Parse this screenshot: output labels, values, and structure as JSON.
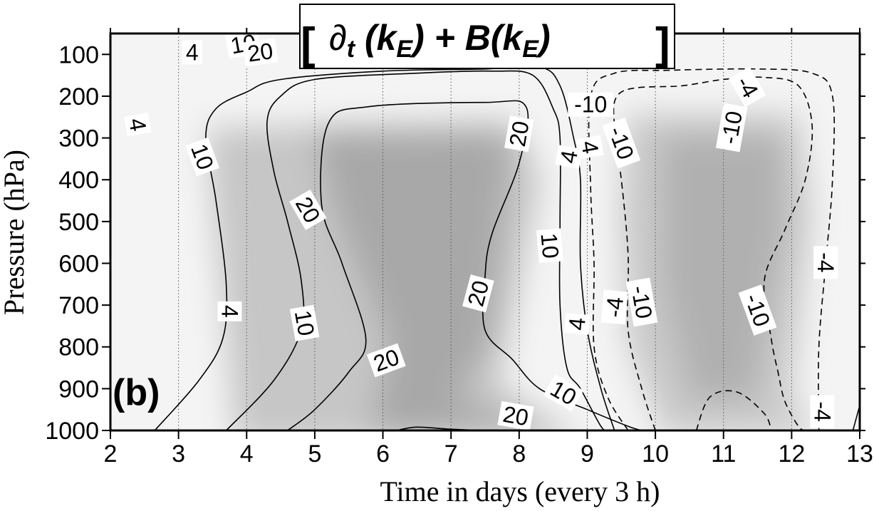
{
  "chart_data": {
    "type": "contour",
    "title": "[ ∂t (kE) + B(kE) ]",
    "title_parts": {
      "open_bracket": "[",
      "partial": "∂",
      "partial_sub": "t",
      "mid1": " (k",
      "sub1": "E",
      "mid2": ") + B(k",
      "sub2": "E",
      "mid3": ")",
      "close_bracket": "]"
    },
    "panel_label": "(b)",
    "xlabel": "Time in days (every 3 h)",
    "ylabel": "Pressure (hPa)",
    "xlim": [
      2,
      13
    ],
    "ylim": [
      1000,
      50
    ],
    "y_inverted": true,
    "grid": "vertical dotted lines every 1 day",
    "x_ticks": [
      2,
      3,
      4,
      5,
      6,
      7,
      8,
      9,
      10,
      11,
      12,
      13
    ],
    "y_ticks": [
      100,
      200,
      300,
      400,
      500,
      600,
      700,
      800,
      900,
      1000
    ],
    "contour_levels": [
      -10,
      -4,
      4,
      10,
      20
    ],
    "negative_style": "dashed",
    "positive_style": "solid",
    "contours": [
      {
        "level": 4,
        "points": [
          [
            2.65,
            1000
          ],
          [
            3.3,
            880
          ],
          [
            3.65,
            780
          ],
          [
            3.7,
            650
          ],
          [
            3.55,
            450
          ],
          [
            3.4,
            300
          ],
          [
            3.55,
            230
          ],
          [
            4.0,
            190
          ],
          [
            4.5,
            160
          ],
          [
            6.0,
            140
          ],
          [
            7.5,
            135
          ],
          [
            8.3,
            130
          ],
          [
            8.6,
            175
          ],
          [
            8.8,
            300
          ],
          [
            8.9,
            400
          ],
          [
            8.9,
            600
          ],
          [
            9.0,
            760
          ],
          [
            9.2,
            900
          ],
          [
            9.4,
            1000
          ]
        ]
      },
      {
        "level": 4,
        "points": [
          [
            6.2,
            1000
          ],
          [
            6.5,
            992
          ],
          [
            7.0,
            997
          ],
          [
            7.5,
            1000
          ]
        ]
      },
      {
        "level": 4,
        "points": [
          [
            12.9,
            1000
          ],
          [
            13.0,
            940
          ]
        ]
      },
      {
        "level": 10,
        "points": [
          [
            3.7,
            1000
          ],
          [
            4.4,
            880
          ],
          [
            4.8,
            760
          ],
          [
            4.8,
            640
          ],
          [
            4.6,
            500
          ],
          [
            4.4,
            380
          ],
          [
            4.3,
            260
          ],
          [
            4.5,
            200
          ],
          [
            5.0,
            160
          ],
          [
            6.5,
            145
          ],
          [
            7.6,
            140
          ],
          [
            8.2,
            150
          ],
          [
            8.5,
            230
          ],
          [
            8.6,
            300
          ],
          [
            8.6,
            500
          ],
          [
            8.6,
            700
          ],
          [
            8.7,
            850
          ],
          [
            8.9,
            900
          ],
          [
            9.2,
            990
          ],
          [
            9.3,
            1000
          ]
        ]
      },
      {
        "level": 20,
        "points": [
          [
            4.6,
            1000
          ],
          [
            5.0,
            950
          ],
          [
            5.5,
            860
          ],
          [
            5.75,
            780
          ],
          [
            5.4,
            600
          ],
          [
            5.1,
            460
          ],
          [
            5.2,
            265
          ],
          [
            5.8,
            225
          ],
          [
            7.5,
            215
          ],
          [
            8.1,
            225
          ],
          [
            8.0,
            360
          ],
          [
            7.6,
            530
          ],
          [
            7.5,
            630
          ],
          [
            7.5,
            760
          ],
          [
            7.9,
            830
          ],
          [
            8.3,
            900
          ],
          [
            9.0,
            950
          ],
          [
            9.6,
            990
          ],
          [
            9.8,
            1000
          ]
        ]
      },
      {
        "level": -4,
        "points": [
          [
            9.6,
            1000
          ],
          [
            9.3,
            920
          ],
          [
            9.1,
            800
          ],
          [
            9.1,
            600
          ],
          [
            9.05,
            420
          ],
          [
            9.05,
            200
          ],
          [
            9.4,
            145
          ],
          [
            10.2,
            138
          ],
          [
            11.5,
            135
          ],
          [
            12.3,
            145
          ],
          [
            12.6,
            200
          ],
          [
            12.6,
            400
          ],
          [
            12.5,
            600
          ],
          [
            12.4,
            800
          ],
          [
            12.4,
            1000
          ]
        ]
      },
      {
        "level": -10,
        "points": [
          [
            10.0,
            1000
          ],
          [
            9.8,
            900
          ],
          [
            9.6,
            760
          ],
          [
            9.6,
            580
          ],
          [
            9.5,
            400
          ],
          [
            9.4,
            280
          ],
          [
            9.5,
            190
          ],
          [
            10.4,
            175
          ],
          [
            11.0,
            160
          ],
          [
            11.6,
            155
          ],
          [
            12.1,
            175
          ],
          [
            12.3,
            270
          ],
          [
            12.2,
            400
          ],
          [
            11.9,
            520
          ],
          [
            11.6,
            640
          ],
          [
            11.7,
            780
          ],
          [
            11.8,
            860
          ],
          [
            11.9,
            930
          ],
          [
            12.1,
            990
          ],
          [
            12.2,
            1000
          ]
        ]
      },
      {
        "level": -4,
        "points": [
          [
            10.6,
            1000
          ],
          [
            10.8,
            920
          ],
          [
            11.2,
            908
          ],
          [
            11.6,
            960
          ],
          [
            11.7,
            1000
          ]
        ]
      }
    ],
    "contour_labels": [
      {
        "text": "4",
        "x": 3.2,
        "y": 95,
        "angle": 0
      },
      {
        "text": "10",
        "x": 3.95,
        "y": 75,
        "angle": -10
      },
      {
        "text": "20",
        "x": 4.2,
        "y": 95,
        "angle": -8
      },
      {
        "text": "10",
        "x": 7.1,
        "y": 72,
        "angle": 15
      },
      {
        "text": "-4",
        "x": 8.85,
        "y": 70,
        "angle": 20
      },
      {
        "text": "-10",
        "x": 9.05,
        "y": 220,
        "angle": 0
      },
      {
        "text": "-4",
        "x": 11.35,
        "y": 178,
        "angle": 60
      },
      {
        "text": "4",
        "x": 2.4,
        "y": 268,
        "angle": 80
      },
      {
        "text": "10",
        "x": 3.35,
        "y": 345,
        "angle": 70
      },
      {
        "text": "20",
        "x": 8.0,
        "y": 290,
        "angle": -80
      },
      {
        "text": "4",
        "x": 8.73,
        "y": 345,
        "angle": -80
      },
      {
        "text": "4",
        "x": 9.04,
        "y": 322,
        "angle": 80
      },
      {
        "text": "-10",
        "x": 9.5,
        "y": 312,
        "angle": 70
      },
      {
        "text": "-10",
        "x": 11.12,
        "y": 275,
        "angle": -80
      },
      {
        "text": "20",
        "x": 4.9,
        "y": 472,
        "angle": 60
      },
      {
        "text": "10",
        "x": 8.45,
        "y": 558,
        "angle": 85
      },
      {
        "text": "20",
        "x": 7.4,
        "y": 672,
        "angle": -75
      },
      {
        "text": "-10",
        "x": 9.8,
        "y": 693,
        "angle": 80
      },
      {
        "text": "-4",
        "x": 9.4,
        "y": 705,
        "angle": -85
      },
      {
        "text": "-10",
        "x": 11.5,
        "y": 712,
        "angle": 70
      },
      {
        "text": "-4",
        "x": 12.5,
        "y": 598,
        "angle": 90
      },
      {
        "text": "4",
        "x": 3.75,
        "y": 715,
        "angle": 90
      },
      {
        "text": "10",
        "x": 4.85,
        "y": 743,
        "angle": 80
      },
      {
        "text": "4",
        "x": 8.85,
        "y": 745,
        "angle": -85
      },
      {
        "text": "20",
        "x": 6.05,
        "y": 832,
        "angle": -20
      },
      {
        "text": "10",
        "x": 8.65,
        "y": 910,
        "angle": 30
      },
      {
        "text": "20",
        "x": 7.95,
        "y": 965,
        "angle": 10
      },
      {
        "text": "-4",
        "x": 12.45,
        "y": 955,
        "angle": 90
      }
    ],
    "shading_note": "grey shading: darker where positive (days ~5-8.5) and negative (days ~9.8-12.3) values are large in magnitude"
  }
}
